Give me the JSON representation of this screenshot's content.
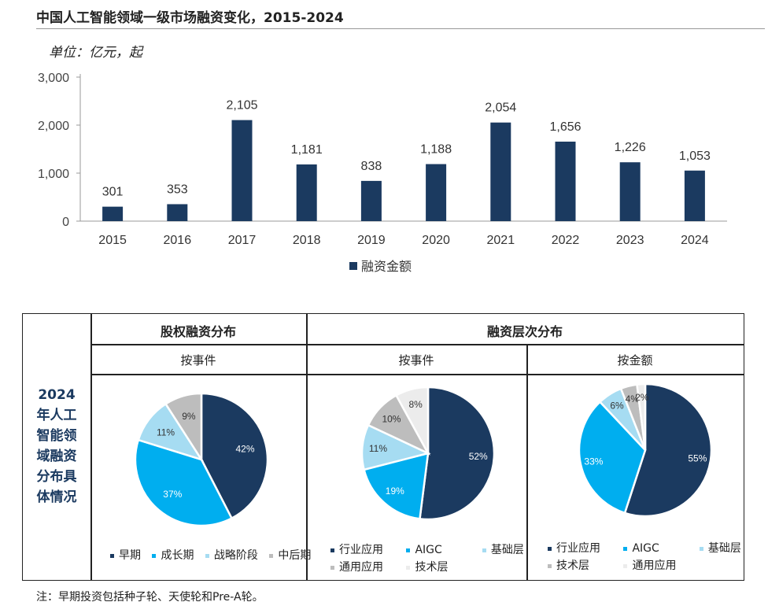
{
  "title": "中国人工智能领域一级市场融资变化，2015-2024",
  "unit": "单位：亿元，起",
  "chart_data": [
    {
      "type": "bar",
      "categories": [
        "2015",
        "2016",
        "2017",
        "2018",
        "2019",
        "2020",
        "2021",
        "2022",
        "2023",
        "2024"
      ],
      "series": [
        {
          "name": "融资金额",
          "values": [
            301,
            353,
            2105,
            1181,
            838,
            1188,
            2054,
            1656,
            1226,
            1053
          ]
        }
      ],
      "data_labels": [
        "301",
        "353",
        "2,105",
        "1,181",
        "838",
        "1,188",
        "2,054",
        "1,656",
        "1,226",
        "1,053"
      ],
      "yticks": [
        "0",
        "1,000",
        "2,000",
        "3,000"
      ],
      "ylim": [
        0,
        3000
      ],
      "legend": "bottom",
      "color": "#1b3a60"
    },
    {
      "type": "pie",
      "title": "股权融资分布",
      "subtitle": "按事件",
      "slices": [
        {
          "name": "早期",
          "value": 42,
          "label": "42%",
          "color": "#1b3a60"
        },
        {
          "name": "成长期",
          "value": 37,
          "label": "37%",
          "color": "#00aeef"
        },
        {
          "name": "战略阶段",
          "value": 11,
          "label": "11%",
          "color": "#a6dcf2"
        },
        {
          "name": "中后期",
          "value": 9,
          "label": "9%",
          "color": "#bdbdbd"
        }
      ]
    },
    {
      "type": "pie",
      "title": "融资层次分布",
      "subtitle": "按事件",
      "slices": [
        {
          "name": "行业应用",
          "value": 52,
          "label": "52%",
          "color": "#1b3a60"
        },
        {
          "name": "AIGC",
          "value": 19,
          "label": "19%",
          "color": "#00aeef"
        },
        {
          "name": "基础层",
          "value": 11,
          "label": "11%",
          "color": "#a6dcf2"
        },
        {
          "name": "通用应用",
          "value": 10,
          "label": "10%",
          "color": "#bdbdbd"
        },
        {
          "name": "技术层",
          "value": 8,
          "label": "8%",
          "color": "#ececec"
        }
      ]
    },
    {
      "type": "pie",
      "title": "融资层次分布",
      "subtitle": "按金额",
      "slices": [
        {
          "name": "行业应用",
          "value": 55,
          "label": "55%",
          "color": "#1b3a60"
        },
        {
          "name": "AIGC",
          "value": 33,
          "label": "33%",
          "color": "#00aeef"
        },
        {
          "name": "基础层",
          "value": 6,
          "label": "6%",
          "color": "#a6dcf2"
        },
        {
          "name": "技术层",
          "value": 4,
          "label": "4%",
          "color": "#bdbdbd"
        },
        {
          "name": "通用应用",
          "value": 2,
          "label": "2%",
          "color": "#ececec"
        }
      ]
    }
  ],
  "table": {
    "side_label": "2024\n年人工\n智能领\n域融资\n分布具\n体情况",
    "header_equity": "股权融资分布",
    "header_layer": "融资层次分布",
    "sub_event_1": "按事件",
    "sub_event_2": "按事件",
    "sub_amount": "按金额"
  },
  "legends": {
    "pie1": [
      "早期",
      "成长期",
      "战略阶段",
      "中后期"
    ],
    "pie2_row1": [
      "行业应用",
      "AIGC",
      "基础层"
    ],
    "pie2_row2": [
      "通用应用",
      "技术层"
    ],
    "pie3_row1": [
      "行业应用",
      "AIGC",
      "基础层"
    ],
    "pie3_row2": [
      "技术层",
      "通用应用"
    ]
  },
  "footnote": "注：早期投资包括种子轮、天使轮和Pre-A轮。"
}
